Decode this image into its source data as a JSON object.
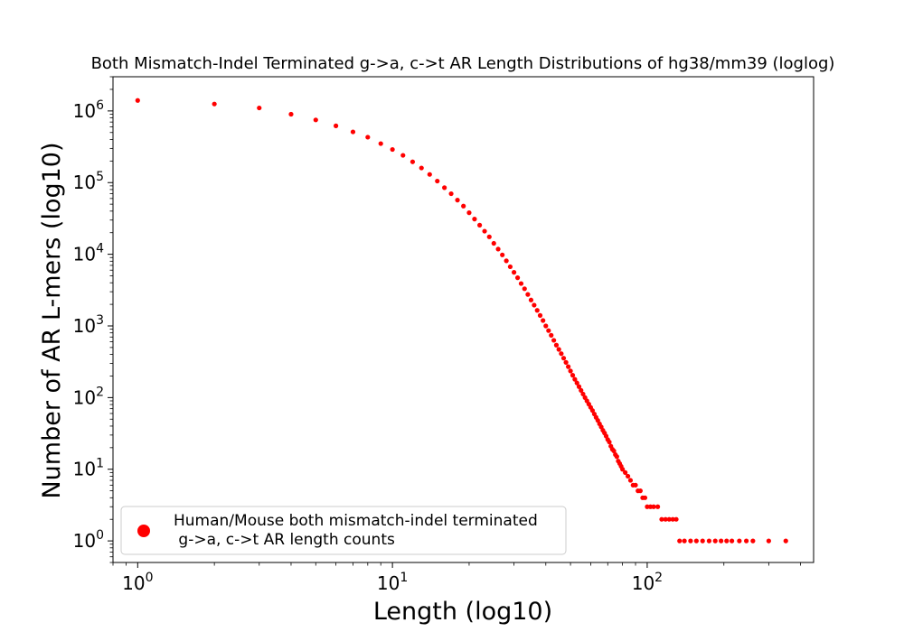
{
  "chart_data": {
    "type": "scatter",
    "title": "Both Mismatch-Indel Terminated g->a, c->t AR Length Distributions of hg38/mm39 (loglog)",
    "xlabel": "Length (log10)",
    "ylabel": "Number of AR L-mers (log10)",
    "xscale": "log",
    "yscale": "log",
    "xlim": [
      0.8,
      450
    ],
    "ylim": [
      0.5,
      3000000
    ],
    "x_ticks": [
      {
        "base": "10",
        "exp": "0",
        "value": 1
      },
      {
        "base": "10",
        "exp": "1",
        "value": 10
      },
      {
        "base": "10",
        "exp": "2",
        "value": 100
      }
    ],
    "y_ticks": [
      {
        "base": "10",
        "exp": "0",
        "value": 1
      },
      {
        "base": "10",
        "exp": "1",
        "value": 10
      },
      {
        "base": "10",
        "exp": "2",
        "value": 100
      },
      {
        "base": "10",
        "exp": "3",
        "value": 1000
      },
      {
        "base": "10",
        "exp": "4",
        "value": 10000
      },
      {
        "base": "10",
        "exp": "5",
        "value": 100000
      },
      {
        "base": "10",
        "exp": "6",
        "value": 1000000
      }
    ],
    "grid": false,
    "legend_position": "lower-left",
    "series": [
      {
        "name": "Human/Mouse both mismatch-indel terminated\n g->a, c->t AR length counts",
        "color": "#ff0000",
        "points": [
          [
            1,
            1400000
          ],
          [
            2,
            1250000
          ],
          [
            3,
            1100000
          ],
          [
            4,
            900000
          ],
          [
            5,
            750000
          ],
          [
            6,
            620000
          ],
          [
            7,
            510000
          ],
          [
            8,
            430000
          ],
          [
            9,
            350000
          ],
          [
            10,
            290000
          ],
          [
            11,
            240000
          ],
          [
            12,
            195000
          ],
          [
            13,
            160000
          ],
          [
            14,
            130000
          ],
          [
            15,
            105000
          ],
          [
            16,
            85000
          ],
          [
            17,
            70000
          ],
          [
            18,
            57000
          ],
          [
            19,
            47000
          ],
          [
            20,
            38000
          ],
          [
            21,
            31000
          ],
          [
            22,
            25500
          ],
          [
            23,
            21000
          ],
          [
            24,
            17500
          ],
          [
            25,
            14200
          ],
          [
            26,
            11800
          ],
          [
            27,
            9800
          ],
          [
            28,
            8100
          ],
          [
            29,
            6700
          ],
          [
            30,
            5600
          ],
          [
            31,
            4700
          ],
          [
            32,
            3900
          ],
          [
            33,
            3300
          ],
          [
            34,
            2750
          ],
          [
            35,
            2300
          ],
          [
            36,
            1950
          ],
          [
            37,
            1650
          ],
          [
            38,
            1400
          ],
          [
            39,
            1190
          ],
          [
            40,
            1000
          ],
          [
            41,
            860
          ],
          [
            42,
            740
          ],
          [
            43,
            630
          ],
          [
            44,
            540
          ],
          [
            45,
            470
          ],
          [
            46,
            410
          ],
          [
            47,
            355
          ],
          [
            48,
            310
          ],
          [
            49,
            270
          ],
          [
            50,
            235
          ],
          [
            51,
            205
          ],
          [
            52,
            180
          ],
          [
            53,
            160
          ],
          [
            54,
            142
          ],
          [
            55,
            126
          ],
          [
            56,
            112
          ],
          [
            57,
            100
          ],
          [
            58,
            90
          ],
          [
            59,
            81
          ],
          [
            60,
            73
          ],
          [
            61,
            66
          ],
          [
            62,
            59
          ],
          [
            63,
            53
          ],
          [
            64,
            48
          ],
          [
            65,
            43
          ],
          [
            66,
            39
          ],
          [
            67,
            35
          ],
          [
            68,
            32
          ],
          [
            69,
            29
          ],
          [
            70,
            26
          ],
          [
            71,
            24
          ],
          [
            72,
            21
          ],
          [
            73,
            19
          ],
          [
            74,
            18
          ],
          [
            75,
            16
          ],
          [
            76,
            15
          ],
          [
            77,
            13
          ],
          [
            78,
            12
          ],
          [
            79,
            11
          ],
          [
            80,
            10
          ],
          [
            82,
            9
          ],
          [
            84,
            8
          ],
          [
            86,
            7
          ],
          [
            88,
            6
          ],
          [
            90,
            6
          ],
          [
            92,
            5
          ],
          [
            94,
            5
          ],
          [
            96,
            4
          ],
          [
            98,
            4
          ],
          [
            100,
            3
          ],
          [
            103,
            3
          ],
          [
            106,
            3
          ],
          [
            110,
            3
          ],
          [
            114,
            2
          ],
          [
            118,
            2
          ],
          [
            122,
            2
          ],
          [
            126,
            2
          ],
          [
            130,
            2
          ],
          [
            134,
            1
          ],
          [
            140,
            1
          ],
          [
            148,
            1
          ],
          [
            156,
            1
          ],
          [
            165,
            1
          ],
          [
            175,
            1
          ],
          [
            185,
            1
          ],
          [
            195,
            1
          ],
          [
            205,
            1
          ],
          [
            215,
            1
          ],
          [
            230,
            1
          ],
          [
            245,
            1
          ],
          [
            260,
            1
          ],
          [
            300,
            1
          ],
          [
            350,
            1
          ]
        ]
      }
    ]
  }
}
